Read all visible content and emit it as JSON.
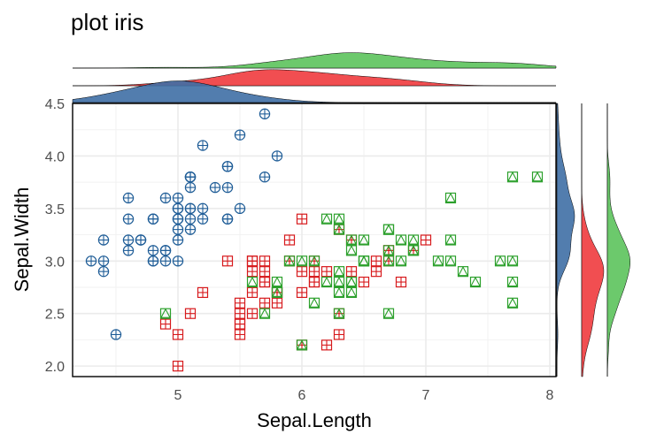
{
  "chart_data": {
    "type": "scatter",
    "title": "plot iris",
    "xlabel": "Sepal.Length",
    "ylabel": "Sepal.Width",
    "xlim": [
      4.15,
      8.05
    ],
    "ylim": [
      1.9,
      4.5
    ],
    "xticks": [
      "5",
      "6",
      "7",
      "8"
    ],
    "yticks": [
      "2.0",
      "2.5",
      "3.0",
      "3.5",
      "4.0",
      "4.5"
    ],
    "grid": true,
    "legend": "none",
    "marginal": "density on top and right, one per series",
    "series": [
      {
        "color": "#1f5d97",
        "fill": "#3f6fa5",
        "marker": "circle-plus",
        "points": [
          [
            5.1,
            3.5
          ],
          [
            4.9,
            3.0
          ],
          [
            4.7,
            3.2
          ],
          [
            4.6,
            3.1
          ],
          [
            5.0,
            3.6
          ],
          [
            5.4,
            3.9
          ],
          [
            4.6,
            3.4
          ],
          [
            5.0,
            3.4
          ],
          [
            4.4,
            2.9
          ],
          [
            4.9,
            3.1
          ],
          [
            5.4,
            3.7
          ],
          [
            4.8,
            3.4
          ],
          [
            4.8,
            3.0
          ],
          [
            4.3,
            3.0
          ],
          [
            5.8,
            4.0
          ],
          [
            5.7,
            4.4
          ],
          [
            5.4,
            3.9
          ],
          [
            5.1,
            3.5
          ],
          [
            5.7,
            3.8
          ],
          [
            5.1,
            3.8
          ],
          [
            5.4,
            3.4
          ],
          [
            5.1,
            3.7
          ],
          [
            4.6,
            3.6
          ],
          [
            5.1,
            3.3
          ],
          [
            4.8,
            3.4
          ],
          [
            5.0,
            3.0
          ],
          [
            5.0,
            3.4
          ],
          [
            5.2,
            3.5
          ],
          [
            5.2,
            3.4
          ],
          [
            4.7,
            3.2
          ],
          [
            4.8,
            3.1
          ],
          [
            5.4,
            3.4
          ],
          [
            5.2,
            4.1
          ],
          [
            5.5,
            4.2
          ],
          [
            4.9,
            3.1
          ],
          [
            5.0,
            3.2
          ],
          [
            5.5,
            3.5
          ],
          [
            4.9,
            3.6
          ],
          [
            4.4,
            3.0
          ],
          [
            5.1,
            3.4
          ],
          [
            5.0,
            3.5
          ],
          [
            4.5,
            2.3
          ],
          [
            4.4,
            3.2
          ],
          [
            5.0,
            3.5
          ],
          [
            5.1,
            3.8
          ],
          [
            4.8,
            3.0
          ],
          [
            5.1,
            3.8
          ],
          [
            4.6,
            3.2
          ],
          [
            5.3,
            3.7
          ],
          [
            5.0,
            3.3
          ]
        ]
      },
      {
        "color": "#d7191c",
        "fill": "#f03b3e",
        "marker": "square-plus",
        "points": [
          [
            7.0,
            3.2
          ],
          [
            6.4,
            3.2
          ],
          [
            6.9,
            3.1
          ],
          [
            5.5,
            2.3
          ],
          [
            6.5,
            2.8
          ],
          [
            5.7,
            2.8
          ],
          [
            6.3,
            3.3
          ],
          [
            4.9,
            2.4
          ],
          [
            6.6,
            2.9
          ],
          [
            5.2,
            2.7
          ],
          [
            5.0,
            2.0
          ],
          [
            5.9,
            3.0
          ],
          [
            6.0,
            2.2
          ],
          [
            6.1,
            2.9
          ],
          [
            5.6,
            2.9
          ],
          [
            6.7,
            3.1
          ],
          [
            5.6,
            3.0
          ],
          [
            5.8,
            2.7
          ],
          [
            6.2,
            2.2
          ],
          [
            5.6,
            2.5
          ],
          [
            5.9,
            3.2
          ],
          [
            6.1,
            2.8
          ],
          [
            6.3,
            2.5
          ],
          [
            6.1,
            2.8
          ],
          [
            6.4,
            2.9
          ],
          [
            6.6,
            3.0
          ],
          [
            6.8,
            2.8
          ],
          [
            6.7,
            3.0
          ],
          [
            6.0,
            2.9
          ],
          [
            5.7,
            2.6
          ],
          [
            5.5,
            2.4
          ],
          [
            5.5,
            2.4
          ],
          [
            5.8,
            2.7
          ],
          [
            6.0,
            2.7
          ],
          [
            5.4,
            3.0
          ],
          [
            6.0,
            3.4
          ],
          [
            6.7,
            3.1
          ],
          [
            6.3,
            2.3
          ],
          [
            5.6,
            3.0
          ],
          [
            5.5,
            2.5
          ],
          [
            5.5,
            2.6
          ],
          [
            6.1,
            3.0
          ],
          [
            5.8,
            2.6
          ],
          [
            5.0,
            2.3
          ],
          [
            5.6,
            2.7
          ],
          [
            5.7,
            3.0
          ],
          [
            5.7,
            2.9
          ],
          [
            6.2,
            2.9
          ],
          [
            5.1,
            2.5
          ],
          [
            5.7,
            2.8
          ]
        ]
      },
      {
        "color": "#2ca02c",
        "fill": "#5cc35c",
        "marker": "square-triangle",
        "points": [
          [
            6.3,
            3.3
          ],
          [
            5.8,
            2.7
          ],
          [
            7.1,
            3.0
          ],
          [
            6.3,
            2.9
          ],
          [
            6.5,
            3.0
          ],
          [
            7.6,
            3.0
          ],
          [
            4.9,
            2.5
          ],
          [
            7.3,
            2.9
          ],
          [
            6.7,
            2.5
          ],
          [
            7.2,
            3.6
          ],
          [
            6.5,
            3.2
          ],
          [
            6.4,
            2.7
          ],
          [
            6.8,
            3.0
          ],
          [
            5.7,
            2.5
          ],
          [
            5.8,
            2.8
          ],
          [
            6.4,
            3.2
          ],
          [
            6.5,
            3.0
          ],
          [
            7.7,
            3.8
          ],
          [
            7.7,
            2.6
          ],
          [
            6.0,
            2.2
          ],
          [
            6.9,
            3.2
          ],
          [
            5.6,
            2.8
          ],
          [
            7.7,
            2.8
          ],
          [
            6.3,
            2.7
          ],
          [
            6.7,
            3.3
          ],
          [
            7.2,
            3.2
          ],
          [
            6.2,
            2.8
          ],
          [
            6.1,
            3.0
          ],
          [
            6.4,
            2.8
          ],
          [
            7.2,
            3.0
          ],
          [
            7.4,
            2.8
          ],
          [
            7.9,
            3.8
          ],
          [
            6.4,
            2.8
          ],
          [
            6.3,
            2.8
          ],
          [
            6.1,
            2.6
          ],
          [
            7.7,
            3.0
          ],
          [
            6.3,
            3.4
          ],
          [
            6.4,
            3.1
          ],
          [
            6.0,
            3.0
          ],
          [
            6.9,
            3.1
          ],
          [
            6.7,
            3.1
          ],
          [
            6.9,
            3.1
          ],
          [
            5.8,
            2.7
          ],
          [
            6.8,
            3.2
          ],
          [
            6.7,
            3.3
          ],
          [
            6.7,
            3.0
          ],
          [
            6.3,
            2.5
          ],
          [
            6.5,
            3.0
          ],
          [
            6.2,
            3.4
          ],
          [
            5.9,
            3.0
          ]
        ]
      }
    ]
  }
}
